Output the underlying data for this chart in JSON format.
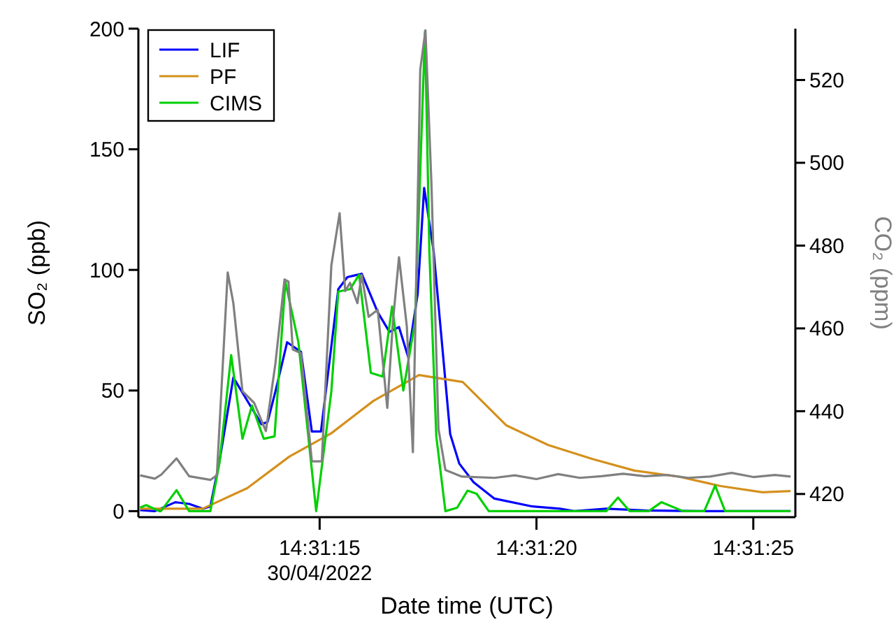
{
  "chart_data": {
    "type": "line",
    "xlabel": "Date time (UTC)",
    "ylabel": "SO₂ (ppb)",
    "y2label": "CO₂ (ppm)",
    "xlim": [
      "2022-04-30T14:31:10.82",
      "2022-04-30T14:31:25.97"
    ],
    "xticks": [
      {
        "value": "2022-04-30T14:31:15",
        "label": "14:31:15\n30/04/2022"
      },
      {
        "value": "2022-04-30T14:31:20",
        "label": "14:31:20"
      },
      {
        "value": "2022-04-30T14:31:25",
        "label": "14:31:25"
      }
    ],
    "ylim": [
      -2.5,
      200
    ],
    "yticks": [
      0,
      50,
      100,
      150,
      200
    ],
    "y2lim": [
      414.4,
      532.4
    ],
    "y2ticks": [
      420,
      440,
      460,
      480,
      500,
      520
    ],
    "grid": false,
    "legend": "top left",
    "series": [
      {
        "name": "LIF",
        "color": "#0000ff",
        "x": [
          "2022-04-30T14:31:10.86",
          "2022-04-30T14:31:11.20",
          "2022-04-30T14:31:11.67",
          "2022-04-30T14:31:11.99",
          "2022-04-30T14:31:12.31",
          "2022-04-30T14:31:12.48",
          "2022-04-30T14:31:12.69",
          "2022-04-30T14:31:13.01",
          "2022-04-30T14:31:13.33",
          "2022-04-30T14:31:13.66",
          "2022-04-30T14:31:13.80",
          "2022-04-30T14:31:13.98",
          "2022-04-30T14:31:14.25",
          "2022-04-30T14:31:14.57",
          "2022-04-30T14:31:14.82",
          "2022-04-30T14:31:15.03",
          "2022-04-30T14:31:15.43",
          "2022-04-30T14:31:15.64",
          "2022-04-30T14:31:15.97",
          "2022-04-30T14:31:16.34",
          "2022-04-30T14:31:16.61",
          "2022-04-30T14:31:16.83",
          "2022-04-30T14:31:17.04",
          "2022-04-30T14:31:17.26",
          "2022-04-30T14:31:17.41",
          "2022-04-30T14:31:17.63",
          "2022-04-30T14:31:18.01",
          "2022-04-30T14:31:18.22",
          "2022-04-30T14:31:18.55",
          "2022-04-30T14:31:19.03",
          "2022-04-30T14:31:19.89",
          "2022-04-30T14:31:20.54",
          "2022-04-30T14:31:20.87",
          "2022-04-30T14:31:21.61",
          "2022-04-30T14:31:22.50",
          "2022-04-30T14:31:23.76",
          "2022-04-30T14:31:25.86"
        ],
        "values": [
          0.4,
          0,
          3.7,
          3,
          1,
          2,
          20.7,
          55.4,
          45.8,
          36,
          37,
          49.6,
          70,
          66,
          33,
          33,
          92,
          97,
          98.4,
          82.4,
          74.3,
          76.3,
          64,
          90,
          134,
          107.5,
          32,
          19.7,
          12,
          5.2,
          2,
          1,
          0,
          1,
          0.3,
          0,
          0
        ]
      },
      {
        "name": "PF",
        "color": "#d4901c",
        "x": [
          "2022-04-30T14:31:10.86",
          "2022-04-30T14:31:12.30",
          "2022-04-30T14:31:13.33",
          "2022-04-30T14:31:14.30",
          "2022-04-30T14:31:15.27",
          "2022-04-30T14:31:16.24",
          "2022-04-30T14:31:17.29",
          "2022-04-30T14:31:18.30",
          "2022-04-30T14:31:19.30",
          "2022-04-30T14:31:20.27",
          "2022-04-30T14:31:21.29",
          "2022-04-30T14:31:22.26",
          "2022-04-30T14:31:23.28",
          "2022-04-30T14:31:24.25",
          "2022-04-30T14:31:25.21",
          "2022-04-30T14:31:25.86"
        ],
        "values": [
          1,
          1,
          9.5,
          22.6,
          32.3,
          45.7,
          56.4,
          53.5,
          35.6,
          27.4,
          21.6,
          16.8,
          14.3,
          10.4,
          7.8,
          8.3
        ]
      },
      {
        "name": "CIMS",
        "color": "#00d000",
        "x": [
          "2022-04-30T14:31:10.86",
          "2022-04-30T14:31:11.00",
          "2022-04-30T14:31:11.30",
          "2022-04-30T14:31:11.34",
          "2022-04-30T14:31:11.70",
          "2022-04-30T14:31:11.99",
          "2022-04-30T14:31:12.48",
          "2022-04-30T14:31:12.69",
          "2022-04-30T14:31:12.96",
          "2022-04-30T14:31:13.22",
          "2022-04-30T14:31:13.44",
          "2022-04-30T14:31:13.71",
          "2022-04-30T14:31:13.96",
          "2022-04-30T14:31:14.21",
          "2022-04-30T14:31:14.51",
          "2022-04-30T14:31:14.92",
          "2022-04-30T14:31:15.27",
          "2022-04-30T14:31:15.43",
          "2022-04-30T14:31:15.70",
          "2022-04-30T14:31:15.91",
          "2022-04-30T14:31:16.18",
          "2022-04-30T14:31:16.45",
          "2022-04-30T14:31:16.67",
          "2022-04-30T14:31:16.93",
          "2022-04-30T14:31:17.20",
          "2022-04-30T14:31:17.43",
          "2022-04-30T14:31:17.53",
          "2022-04-30T14:31:17.69",
          "2022-04-30T14:31:17.90",
          "2022-04-30T14:31:18.17",
          "2022-04-30T14:31:18.41",
          "2022-04-30T14:31:18.62",
          "2022-04-30T14:31:18.90",
          "2022-04-30T14:31:21.61",
          "2022-04-30T14:31:21.88",
          "2022-04-30T14:31:22.15",
          "2022-04-30T14:31:22.59",
          "2022-04-30T14:31:22.88",
          "2022-04-30T14:31:23.38",
          "2022-04-30T14:31:23.87",
          "2022-04-30T14:31:24.12",
          "2022-04-30T14:31:24.35",
          "2022-04-30T14:31:25.86"
        ],
        "values": [
          1.5,
          2.5,
          0,
          0,
          8.7,
          0,
          0,
          20,
          64.7,
          30,
          43.8,
          30,
          31,
          95,
          70,
          0,
          49.6,
          91,
          92,
          98,
          57.3,
          55.8,
          84.8,
          50,
          78.6,
          199,
          107.5,
          31,
          0,
          1.4,
          8.5,
          7.2,
          0,
          0,
          5.6,
          0,
          0,
          3.7,
          0,
          0,
          10.6,
          0,
          0
        ]
      },
      {
        "color": "#808080",
        "axis": "y2",
        "x": [
          "2022-04-30T14:31:10.86",
          "2022-04-30T14:31:11.20",
          "2022-04-30T14:31:11.35",
          "2022-04-30T14:31:11.70",
          "2022-04-30T14:31:11.99",
          "2022-04-30T14:31:12.48",
          "2022-04-30T14:31:12.63",
          "2022-04-30T14:31:12.88",
          "2022-04-30T14:31:13.01",
          "2022-04-30T14:31:13.22",
          "2022-04-30T14:31:13.49",
          "2022-04-30T14:31:13.76",
          "2022-04-30T14:31:13.98",
          "2022-04-30T14:31:14.19",
          "2022-04-30T14:31:14.28",
          "2022-04-30T14:31:14.38",
          "2022-04-30T14:31:14.57",
          "2022-04-30T14:31:14.82",
          "2022-04-30T14:31:15.05",
          "2022-04-30T14:31:15.27",
          "2022-04-30T14:31:15.46",
          "2022-04-30T14:31:15.59",
          "2022-04-30T14:31:15.70",
          "2022-04-30T14:31:15.87",
          "2022-04-30T14:31:15.97",
          "2022-04-30T14:31:16.13",
          "2022-04-30T14:31:16.34",
          "2022-04-30T14:31:16.56",
          "2022-04-30T14:31:16.69",
          "2022-04-30T14:31:16.83",
          "2022-04-30T14:31:17.01",
          "2022-04-30T14:31:17.15",
          "2022-04-30T14:31:17.32",
          "2022-04-30T14:31:17.44",
          "2022-04-30T14:31:17.58",
          "2022-04-30T14:31:17.74",
          "2022-04-30T14:31:17.90",
          "2022-04-30T14:31:18.28",
          "2022-04-30T14:31:19.03",
          "2022-04-30T14:31:19.50",
          "2022-04-30T14:31:20.00",
          "2022-04-30T14:31:20.50",
          "2022-04-30T14:31:21.00",
          "2022-04-30T14:31:21.50",
          "2022-04-30T14:31:22.00",
          "2022-04-30T14:31:22.50",
          "2022-04-30T14:31:23.00",
          "2022-04-30T14:31:23.50",
          "2022-04-30T14:31:24.00",
          "2022-04-30T14:31:24.50",
          "2022-04-30T14:31:25.00",
          "2022-04-30T14:31:25.50",
          "2022-04-30T14:31:25.86"
        ],
        "values": [
          424.5,
          423.7,
          424.7,
          428.6,
          424.3,
          423.4,
          424.5,
          473.5,
          466.1,
          444.8,
          442,
          435.2,
          451.5,
          471.8,
          471.3,
          454.9,
          454,
          427.9,
          427.9,
          475.2,
          487.8,
          469,
          471,
          466.1,
          472.9,
          462.8,
          464.5,
          440.8,
          461.7,
          477.2,
          460.5,
          430.1,
          522.5,
          532,
          494.3,
          435.7,
          425.8,
          424.2,
          423.9,
          424.5,
          423.6,
          424.8,
          423.9,
          424.3,
          424.9,
          424.3,
          424.6,
          423.9,
          424.2,
          425.1,
          424.1,
          424.6,
          424.2
        ]
      }
    ]
  }
}
